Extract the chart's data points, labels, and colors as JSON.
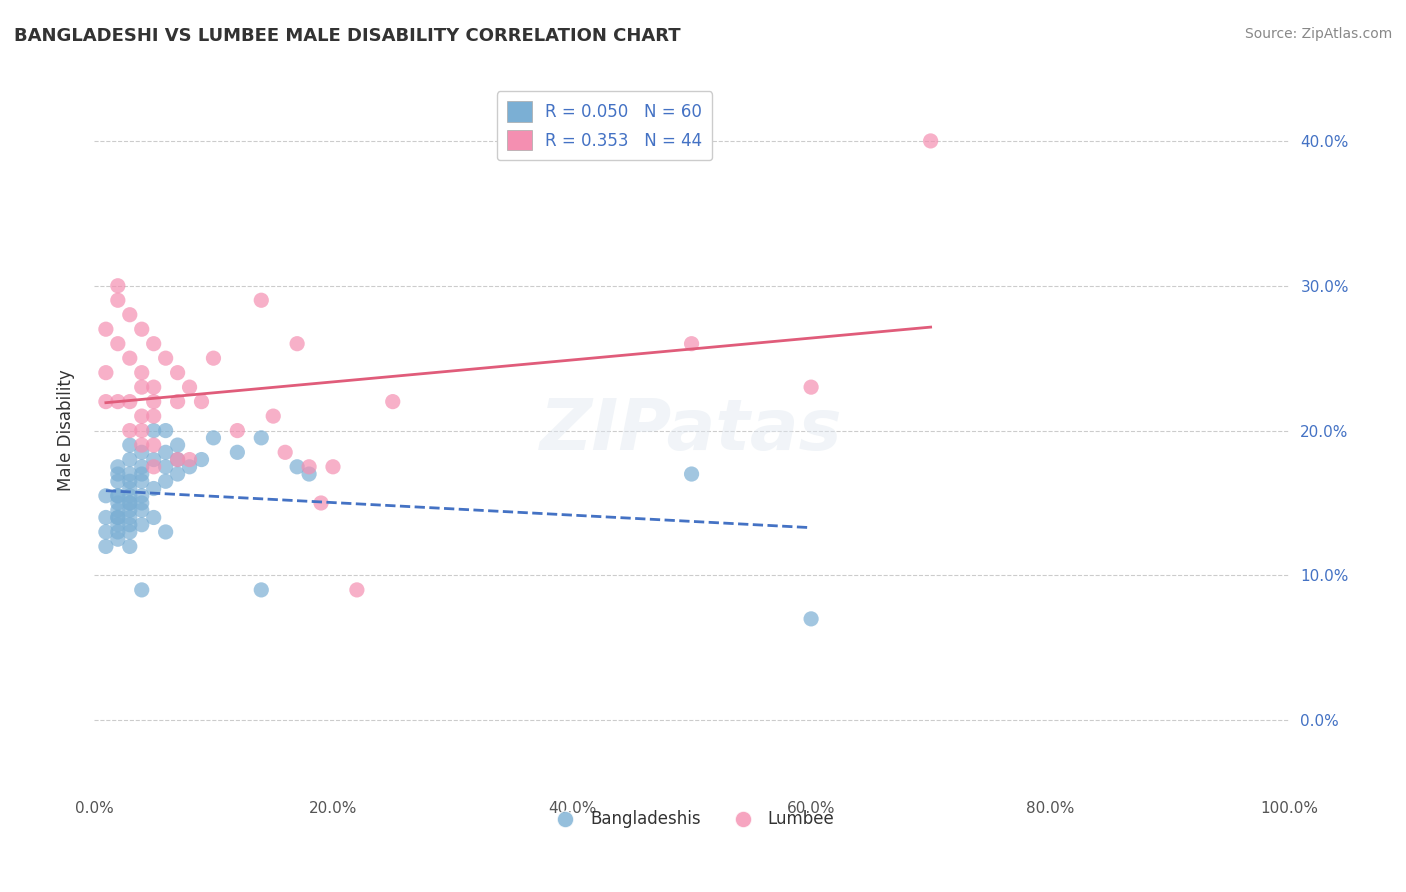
{
  "title": "BANGLADESHI VS LUMBEE MALE DISABILITY CORRELATION CHART",
  "source": "Source: ZipAtlas.com",
  "xlabel": "",
  "ylabel": "Male Disability",
  "watermark": "ZIPatas",
  "legend_entries": [
    {
      "label": "R = 0.050   N = 60",
      "color": "#aac4e8"
    },
    {
      "label": "R = 0.353   N = 44",
      "color": "#f4a7b9"
    }
  ],
  "legend_label_bangladeshi": "Bangladeshis",
  "legend_label_lumbee": "Lumbee",
  "xlim": [
    0.0,
    1.0
  ],
  "ylim": [
    -0.05,
    0.45
  ],
  "x_ticks": [
    0.0,
    0.2,
    0.4,
    0.6,
    0.8,
    1.0
  ],
  "x_tick_labels": [
    "0.0%",
    "20.0%",
    "40.0%",
    "60.0%",
    "80.0%",
    "100.0%"
  ],
  "y_ticks": [
    0.0,
    0.1,
    0.2,
    0.3,
    0.4
  ],
  "y_tick_labels": [
    "0.0%",
    "10.0%",
    "20.0%",
    "30.0%",
    "40.0%"
  ],
  "blue_color": "#7bafd4",
  "pink_color": "#f48fb1",
  "blue_line_color": "#4472c4",
  "pink_line_color": "#e05c7a",
  "bg_color": "#ffffff",
  "grid_color": "#cccccc",
  "bangladeshi_x": [
    0.01,
    0.01,
    0.01,
    0.01,
    0.02,
    0.02,
    0.02,
    0.02,
    0.02,
    0.02,
    0.02,
    0.02,
    0.02,
    0.02,
    0.02,
    0.02,
    0.03,
    0.03,
    0.03,
    0.03,
    0.03,
    0.03,
    0.03,
    0.03,
    0.03,
    0.03,
    0.03,
    0.03,
    0.03,
    0.04,
    0.04,
    0.04,
    0.04,
    0.04,
    0.04,
    0.04,
    0.04,
    0.04,
    0.05,
    0.05,
    0.05,
    0.05,
    0.06,
    0.06,
    0.06,
    0.06,
    0.06,
    0.07,
    0.07,
    0.07,
    0.08,
    0.09,
    0.1,
    0.12,
    0.14,
    0.14,
    0.17,
    0.18,
    0.5,
    0.6
  ],
  "bangladeshi_y": [
    0.155,
    0.14,
    0.13,
    0.12,
    0.175,
    0.17,
    0.165,
    0.155,
    0.155,
    0.15,
    0.145,
    0.14,
    0.14,
    0.135,
    0.13,
    0.125,
    0.19,
    0.18,
    0.17,
    0.165,
    0.16,
    0.155,
    0.15,
    0.15,
    0.145,
    0.14,
    0.135,
    0.13,
    0.12,
    0.185,
    0.175,
    0.17,
    0.165,
    0.155,
    0.15,
    0.145,
    0.135,
    0.09,
    0.2,
    0.18,
    0.16,
    0.14,
    0.2,
    0.185,
    0.175,
    0.165,
    0.13,
    0.19,
    0.18,
    0.17,
    0.175,
    0.18,
    0.195,
    0.185,
    0.195,
    0.09,
    0.175,
    0.17,
    0.17,
    0.07
  ],
  "lumbee_x": [
    0.01,
    0.01,
    0.01,
    0.02,
    0.02,
    0.02,
    0.02,
    0.03,
    0.03,
    0.03,
    0.03,
    0.04,
    0.04,
    0.04,
    0.04,
    0.04,
    0.04,
    0.05,
    0.05,
    0.05,
    0.05,
    0.05,
    0.05,
    0.06,
    0.07,
    0.07,
    0.07,
    0.08,
    0.08,
    0.09,
    0.1,
    0.12,
    0.14,
    0.15,
    0.16,
    0.17,
    0.18,
    0.19,
    0.2,
    0.22,
    0.25,
    0.5,
    0.6,
    0.7
  ],
  "lumbee_y": [
    0.27,
    0.24,
    0.22,
    0.3,
    0.29,
    0.26,
    0.22,
    0.28,
    0.25,
    0.22,
    0.2,
    0.27,
    0.24,
    0.23,
    0.21,
    0.2,
    0.19,
    0.26,
    0.23,
    0.22,
    0.21,
    0.19,
    0.175,
    0.25,
    0.24,
    0.22,
    0.18,
    0.23,
    0.18,
    0.22,
    0.25,
    0.2,
    0.29,
    0.21,
    0.185,
    0.26,
    0.175,
    0.15,
    0.175,
    0.09,
    0.22,
    0.26,
    0.23,
    0.4
  ]
}
